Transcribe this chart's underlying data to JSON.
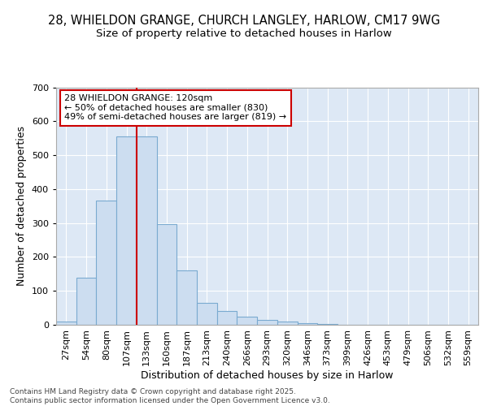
{
  "title1": "28, WHIELDON GRANGE, CHURCH LANGLEY, HARLOW, CM17 9WG",
  "title2": "Size of property relative to detached houses in Harlow",
  "xlabel": "Distribution of detached houses by size in Harlow",
  "ylabel": "Number of detached properties",
  "categories": [
    "27sqm",
    "54sqm",
    "80sqm",
    "107sqm",
    "133sqm",
    "160sqm",
    "187sqm",
    "213sqm",
    "240sqm",
    "266sqm",
    "293sqm",
    "320sqm",
    "346sqm",
    "373sqm",
    "399sqm",
    "426sqm",
    "453sqm",
    "479sqm",
    "506sqm",
    "532sqm",
    "559sqm"
  ],
  "values": [
    10,
    138,
    365,
    555,
    555,
    297,
    160,
    65,
    40,
    23,
    15,
    10,
    5,
    2,
    1,
    1,
    0,
    0,
    0,
    0,
    0
  ],
  "bar_color": "#ccddf0",
  "bar_edge_color": "#7aaad0",
  "background_color": "#dde8f5",
  "grid_color": "#ffffff",
  "red_line_x": 3.5,
  "annotation_text": "28 WHIELDON GRANGE: 120sqm\n← 50% of detached houses are smaller (830)\n49% of semi-detached houses are larger (819) →",
  "annotation_box_facecolor": "#ffffff",
  "annotation_box_edgecolor": "#cc0000",
  "ylim": [
    0,
    700
  ],
  "yticks": [
    0,
    100,
    200,
    300,
    400,
    500,
    600,
    700
  ],
  "fig_facecolor": "#ffffff",
  "title1_fontsize": 10.5,
  "title2_fontsize": 9.5,
  "axis_label_fontsize": 9,
  "tick_fontsize": 8,
  "annotation_fontsize": 8,
  "footer_fontsize": 6.5,
  "footer": "Contains HM Land Registry data © Crown copyright and database right 2025.\nContains public sector information licensed under the Open Government Licence v3.0."
}
